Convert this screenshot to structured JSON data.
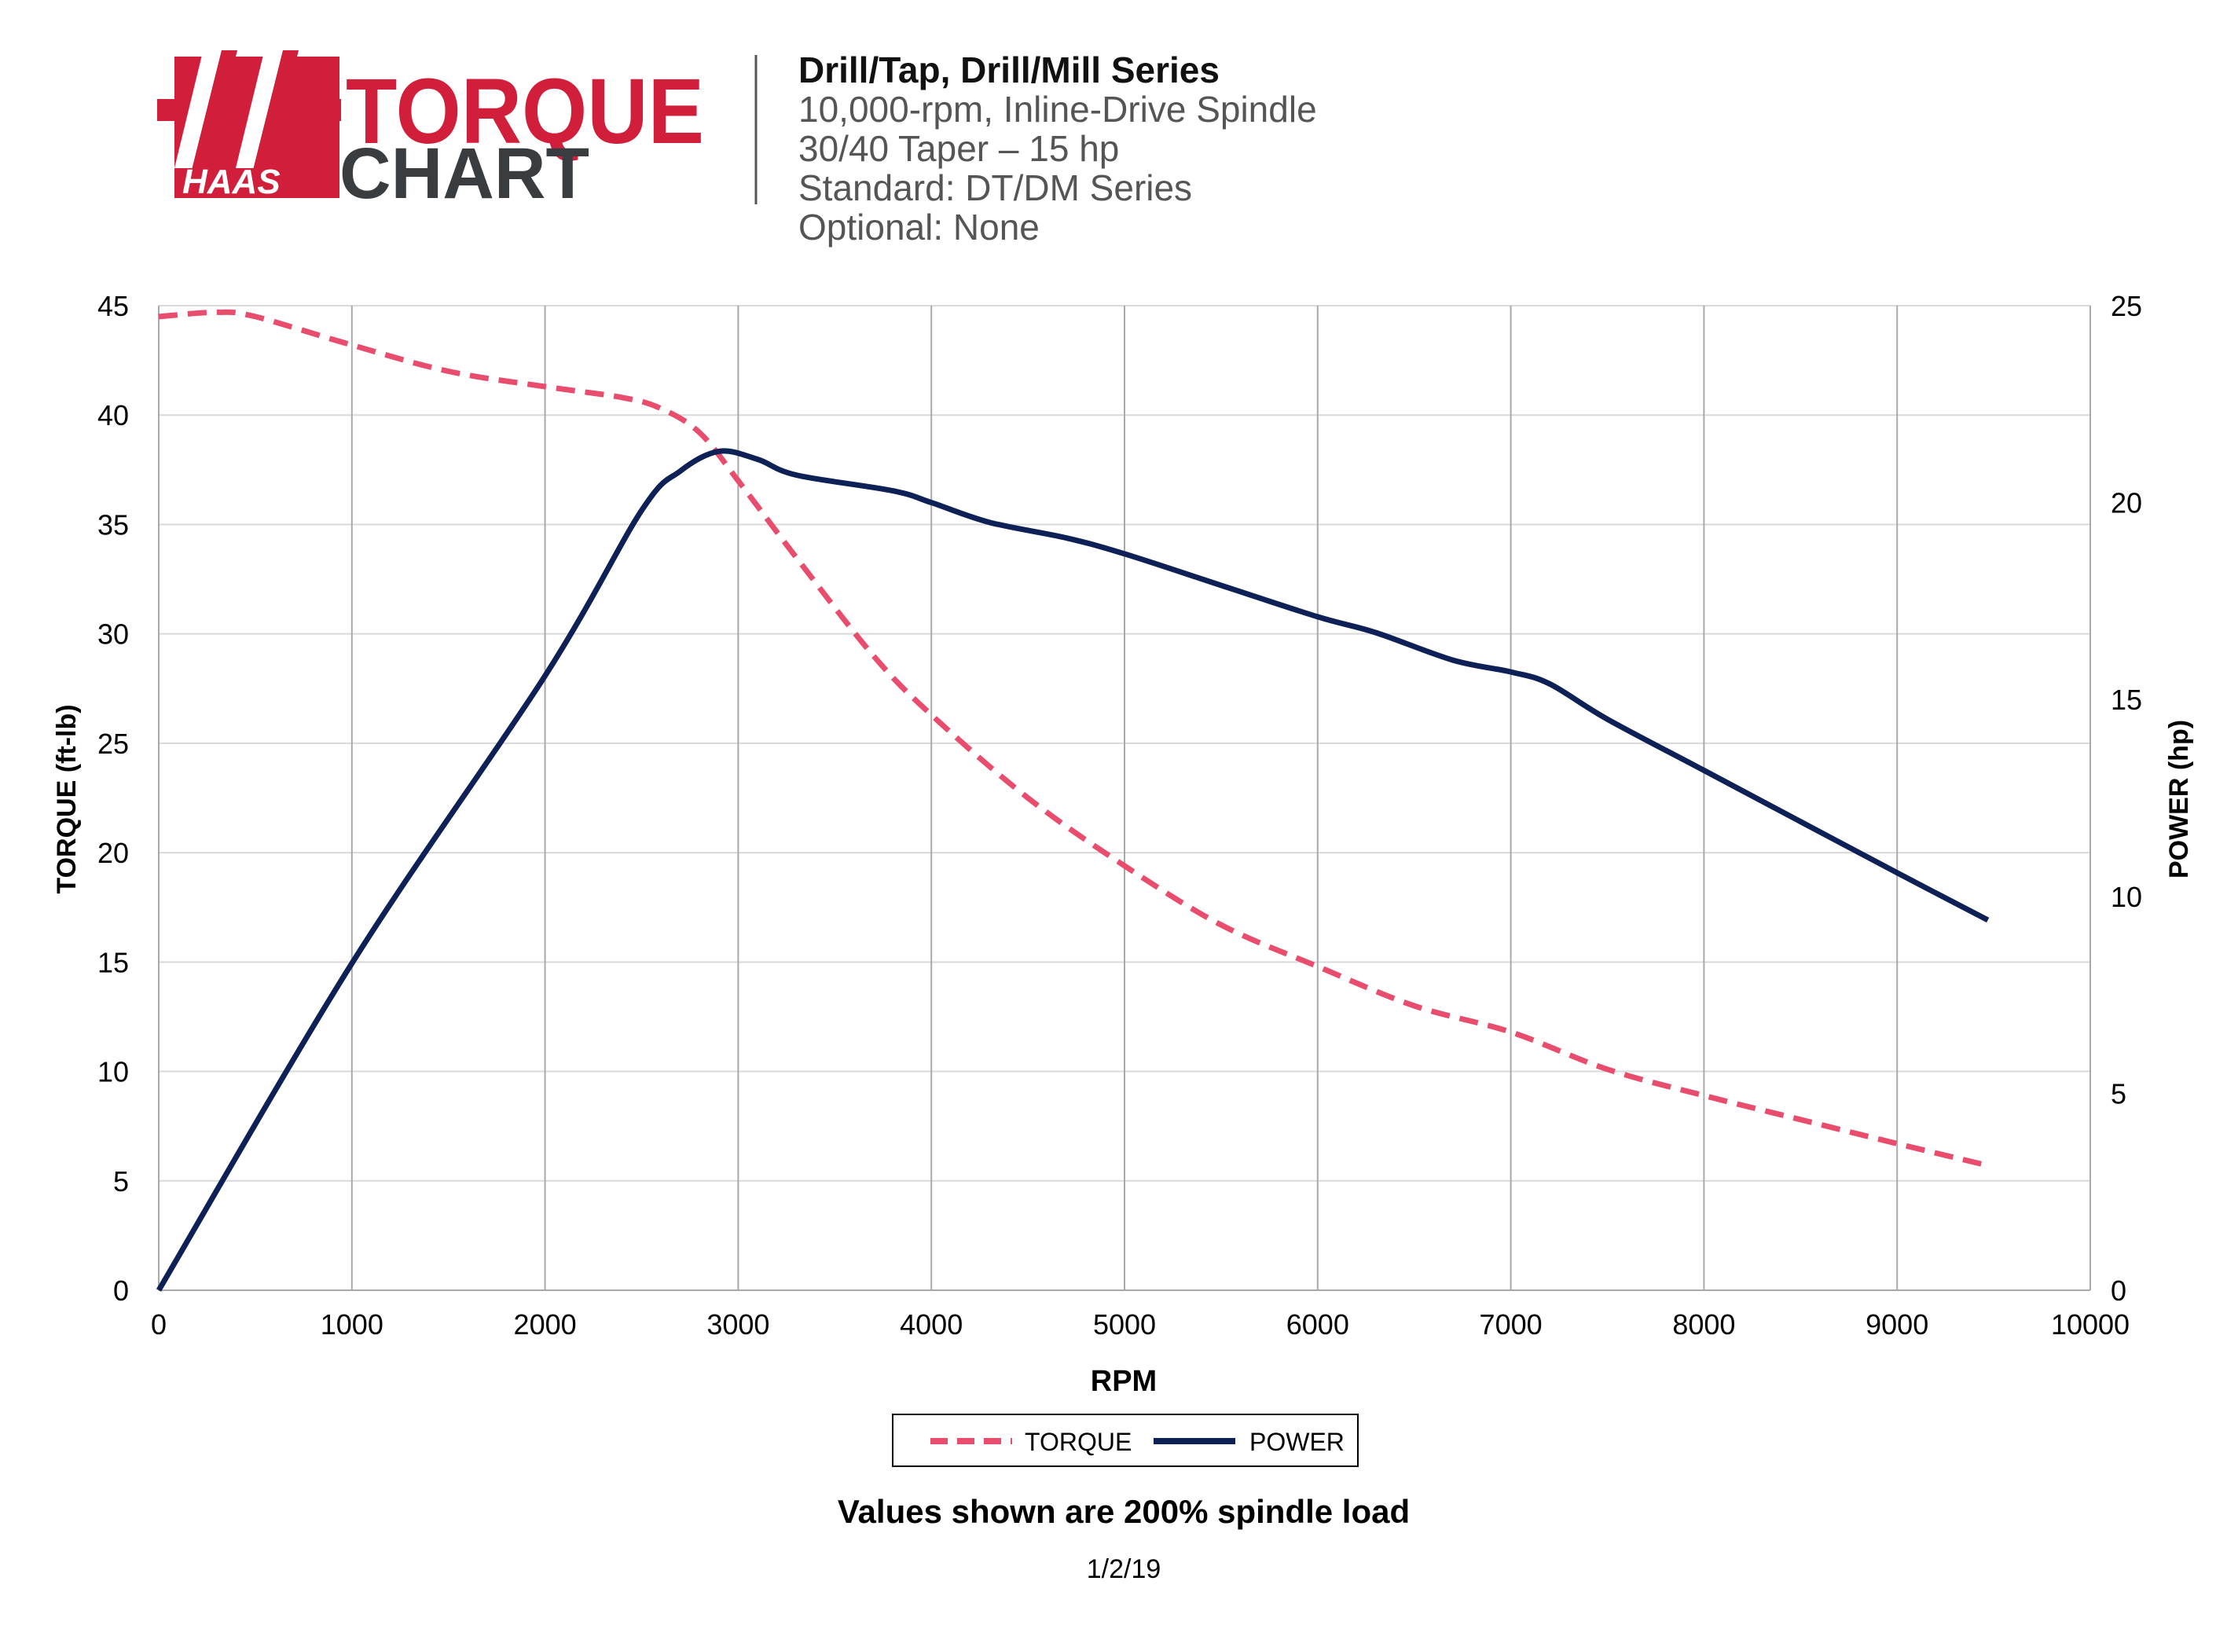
{
  "header": {
    "logo": {
      "brand": "HAAS",
      "word1": "TORQUE",
      "word2": "CHART",
      "colors": {
        "red": "#d11f3b",
        "dark": "#3a3d40"
      }
    },
    "title": "Drill/Tap, Drill/Mill Series",
    "lines": [
      "10,000-rpm, Inline-Drive Spindle",
      "30/40 Taper – 15 hp",
      "Standard: DT/DM Series",
      "Optional: None"
    ]
  },
  "colors": {
    "torque": "#e84d6d",
    "power": "#0d2157",
    "grid": "#a9a9a9",
    "text": "#000000",
    "subtitle": "#555555"
  },
  "chart_data": {
    "type": "line",
    "xlabel": "RPM",
    "ylabel_left": "TORQUE (ft-lb)",
    "ylabel_right": "POWER (hp)",
    "xlim": [
      0,
      10000
    ],
    "ylim_left": [
      0,
      45
    ],
    "ylim_right": [
      0,
      25
    ],
    "x_ticks": [
      "0",
      "1000",
      "2000",
      "3000",
      "4000",
      "5000",
      "6000",
      "7000",
      "8000",
      "9000",
      "10000"
    ],
    "y_left_ticks": [
      "0",
      "5",
      "10",
      "15",
      "20",
      "25",
      "30",
      "35",
      "40",
      "45"
    ],
    "y_right_ticks": [
      "0",
      "5",
      "10",
      "15",
      "20",
      "25"
    ],
    "grid": "vertical and horizontal",
    "legend_position": "bottom-center",
    "series": [
      {
        "name": "TORQUE",
        "axis": "left",
        "style": "dashed",
        "points": [
          [
            0,
            44.5
          ],
          [
            300,
            44.7
          ],
          [
            500,
            44.5
          ],
          [
            1000,
            43.2
          ],
          [
            1500,
            42.0
          ],
          [
            2000,
            41.3
          ],
          [
            2400,
            40.8
          ],
          [
            2600,
            40.3
          ],
          [
            2800,
            39.2
          ],
          [
            3000,
            37.0
          ],
          [
            3300,
            33.5
          ],
          [
            3700,
            29.0
          ],
          [
            4000,
            26.3
          ],
          [
            4500,
            22.5
          ],
          [
            5000,
            19.4
          ],
          [
            5500,
            16.7
          ],
          [
            6000,
            14.8
          ],
          [
            6500,
            13.0
          ],
          [
            7000,
            11.8
          ],
          [
            7500,
            10.1
          ],
          [
            8000,
            8.9
          ],
          [
            8500,
            7.8
          ],
          [
            9000,
            6.7
          ],
          [
            9470,
            5.7
          ]
        ]
      },
      {
        "name": "POWER",
        "axis": "right",
        "style": "solid",
        "points": [
          [
            0,
            0
          ],
          [
            1000,
            8.3
          ],
          [
            2000,
            15.6
          ],
          [
            2500,
            19.8
          ],
          [
            2700,
            20.8
          ],
          [
            2900,
            21.3
          ],
          [
            3100,
            21.1
          ],
          [
            3300,
            20.7
          ],
          [
            3800,
            20.3
          ],
          [
            4000,
            20.0
          ],
          [
            4300,
            19.5
          ],
          [
            4700,
            19.1
          ],
          [
            5000,
            18.7
          ],
          [
            5500,
            17.9
          ],
          [
            6000,
            17.1
          ],
          [
            6300,
            16.7
          ],
          [
            6700,
            16.0
          ],
          [
            7000,
            15.7
          ],
          [
            7200,
            15.4
          ],
          [
            7500,
            14.5
          ],
          [
            8000,
            13.2
          ],
          [
            8500,
            11.9
          ],
          [
            9000,
            10.6
          ],
          [
            9470,
            9.4
          ]
        ]
      }
    ]
  },
  "footer": {
    "note": "Values shown are 200% spindle load",
    "date": "1/2/19"
  }
}
